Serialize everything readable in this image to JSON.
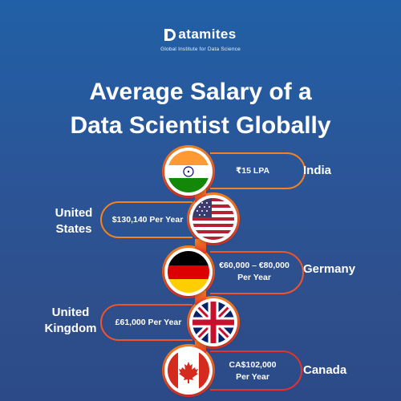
{
  "brand": {
    "name": "atamites",
    "tagline": "Global Institute for Data Science"
  },
  "title": {
    "line1": "Average Salary of a",
    "line2": "Data Scientist Globally"
  },
  "items": [
    {
      "country": "India",
      "salary": "₹15 LPA",
      "flag": "india-flag"
    },
    {
      "country_line1": "United",
      "country_line2": "States",
      "salary": "$130,140 Per Year",
      "flag": "usa-flag"
    },
    {
      "country": "Germany",
      "salary_line1": "€60,000 – €80,000",
      "salary_line2": "Per Year",
      "flag": "germany-flag"
    },
    {
      "country_line1": "United",
      "country_line2": "Kingdom",
      "salary": "£61,000 Per Year",
      "flag": "uk-flag"
    },
    {
      "country": "Canada",
      "salary_line1": "CA$102,000",
      "salary_line2": "Per Year",
      "flag": "canada-flag"
    }
  ],
  "colors": {
    "background_top": "#2160a6",
    "background_bottom": "#2c4a88",
    "ribbon_orange": "#f4831f",
    "ribbon_red": "#e5332a"
  }
}
